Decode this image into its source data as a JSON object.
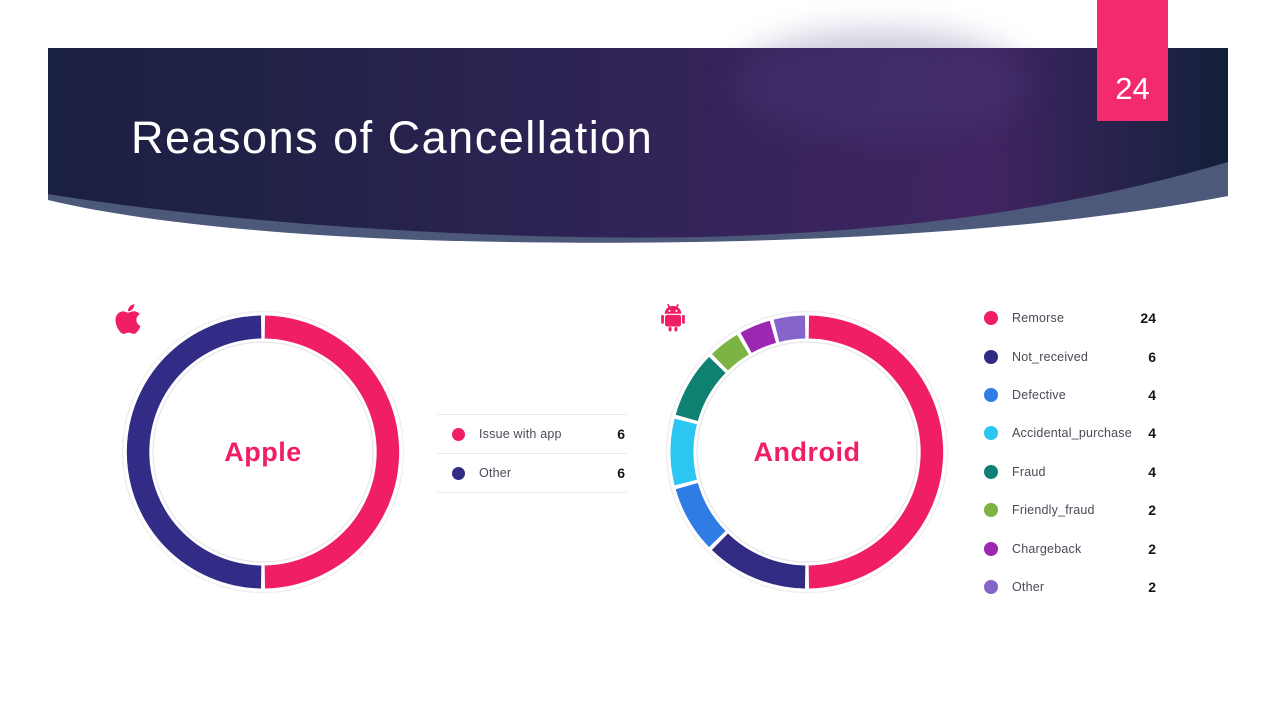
{
  "slide": {
    "title": "Reasons of Cancellation",
    "page_number": "24"
  },
  "theme": {
    "banner_navy_left": "#1A2040",
    "banner_purple": "#402562",
    "banner_navy_right": "#12203A",
    "banner_slate_swoosh": "#4D597A",
    "badge_pink": "#F12B6E",
    "accent_pink": "#F01E66",
    "title_color": "#FFFFFF",
    "legend_label_color": "#4A4A58",
    "legend_value_color": "#15151F",
    "divider_color": "#E9E9EE"
  },
  "chart_data": [
    {
      "type": "donut",
      "title": "Apple",
      "icon": "apple-icon",
      "accent": "#F01E66",
      "legend_position": "right",
      "legend_dividers": true,
      "total": 12,
      "segments": [
        {
          "label": "Issue with app",
          "value": 6,
          "color": "#F01E66"
        },
        {
          "label": "Other",
          "value": 6,
          "color": "#332C87"
        }
      ]
    },
    {
      "type": "donut",
      "title": "Android",
      "icon": "android-icon",
      "accent": "#F01E66",
      "legend_position": "right",
      "legend_dividers": false,
      "total": 48,
      "segments": [
        {
          "label": "Remorse",
          "value": 24,
          "color": "#F01E66"
        },
        {
          "label": "Not_received",
          "value": 6,
          "color": "#322B84"
        },
        {
          "label": "Defective",
          "value": 4,
          "color": "#2E7CE4"
        },
        {
          "label": "Accidental_purchase",
          "value": 4,
          "color": "#2BC6F2"
        },
        {
          "label": "Fraud",
          "value": 4,
          "color": "#0F8173"
        },
        {
          "label": "Friendly_fraud",
          "value": 2,
          "color": "#7CB342"
        },
        {
          "label": "Chargeback",
          "value": 2,
          "color": "#9C27B0"
        },
        {
          "label": "Other",
          "value": 2,
          "color": "#8464C8"
        }
      ]
    }
  ]
}
